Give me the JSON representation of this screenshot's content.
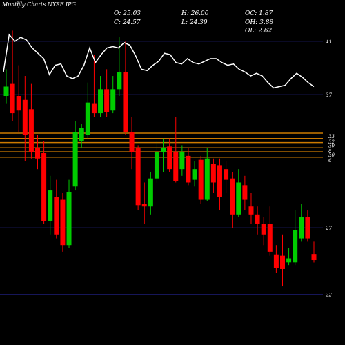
{
  "chart_data": {
    "type": "candlestick",
    "title": "Monthly Charts NYSE IPG",
    "watermark": "Munafa",
    "info": [
      "O: 25.03",
      "H: 26.00",
      "OC: 1.87",
      "C: 24.57",
      "L: 24.39",
      "OH: 3.88",
      "OL: 2.62"
    ],
    "ylim": [
      18.2,
      44.1
    ],
    "yticks": [
      41,
      37,
      27,
      22
    ],
    "grid": true,
    "grid_color": "#1a1a66",
    "up_color": "#00cc00",
    "down_color": "#ff0000",
    "level_color": "#cc7a00",
    "line_color": "#ffffff",
    "levels": [
      {
        "value": 34.1,
        "label": "33"
      },
      {
        "value": 33.7,
        "label": "32"
      },
      {
        "value": 33.4,
        "label": "30"
      },
      {
        "value": 33.0,
        "label": "8"
      },
      {
        "value": 32.7,
        "label": "30"
      },
      {
        "value": 32.3,
        "label": "6"
      }
    ],
    "candles": [
      {
        "o": 36.9,
        "c": 37.6,
        "h": 38.9,
        "l": 36.3
      },
      {
        "o": 37.8,
        "c": 35.6,
        "h": 41.8,
        "l": 35.0
      },
      {
        "o": 36.9,
        "c": 35.8,
        "h": 39.2,
        "l": 34.2
      },
      {
        "o": 36.6,
        "c": 34.0,
        "h": 38.4,
        "l": 32.0
      },
      {
        "o": 35.9,
        "c": 32.7,
        "h": 37.8,
        "l": 32.2
      },
      {
        "o": 33.0,
        "c": 32.2,
        "h": 34.0,
        "l": 31.4
      },
      {
        "o": 32.6,
        "c": 27.5,
        "h": 33.5,
        "l": 27.3
      },
      {
        "o": 27.5,
        "c": 29.8,
        "h": 30.9,
        "l": 26.5
      },
      {
        "o": 29.3,
        "c": 26.5,
        "h": 30.6,
        "l": 26.2
      },
      {
        "o": 29.1,
        "c": 25.7,
        "h": 29.6,
        "l": 25.2
      },
      {
        "o": 25.7,
        "c": 29.7,
        "h": 30.6,
        "l": 25.5
      },
      {
        "o": 30.1,
        "c": 34.2,
        "h": 35.0,
        "l": 29.8
      },
      {
        "o": 33.5,
        "c": 34.5,
        "h": 34.8,
        "l": 33.0
      },
      {
        "o": 34.0,
        "c": 36.4,
        "h": 37.9,
        "l": 33.7
      },
      {
        "o": 36.3,
        "c": 35.6,
        "h": 40.0,
        "l": 35.3
      },
      {
        "o": 35.6,
        "c": 37.4,
        "h": 38.4,
        "l": 35.3
      },
      {
        "o": 37.4,
        "c": 35.7,
        "h": 38.9,
        "l": 35.3
      },
      {
        "o": 35.8,
        "c": 37.4,
        "h": 38.4,
        "l": 35.6
      },
      {
        "o": 37.4,
        "c": 38.7,
        "h": 41.3,
        "l": 36.9
      },
      {
        "o": 38.7,
        "c": 34.2,
        "h": 41.0,
        "l": 34.0
      },
      {
        "o": 34.2,
        "c": 32.7,
        "h": 35.3,
        "l": 31.4
      },
      {
        "o": 33.0,
        "c": 28.7,
        "h": 33.2,
        "l": 28.3
      },
      {
        "o": 28.8,
        "c": 28.6,
        "h": 30.4,
        "l": 27.3
      },
      {
        "o": 28.6,
        "c": 30.7,
        "h": 31.2,
        "l": 28.0
      },
      {
        "o": 30.7,
        "c": 32.7,
        "h": 33.5,
        "l": 30.4
      },
      {
        "o": 32.7,
        "c": 33.0,
        "h": 33.7,
        "l": 31.2
      },
      {
        "o": 33.1,
        "c": 31.4,
        "h": 33.7,
        "l": 31.2
      },
      {
        "o": 32.7,
        "c": 30.5,
        "h": 35.3,
        "l": 30.4
      },
      {
        "o": 31.4,
        "c": 32.7,
        "h": 33.2,
        "l": 30.9
      },
      {
        "o": 32.4,
        "c": 30.4,
        "h": 33.0,
        "l": 30.2
      },
      {
        "o": 30.6,
        "c": 31.4,
        "h": 32.0,
        "l": 30.1
      },
      {
        "o": 32.1,
        "c": 29.1,
        "h": 32.4,
        "l": 28.8
      },
      {
        "o": 29.1,
        "c": 32.2,
        "h": 33.0,
        "l": 29.0
      },
      {
        "o": 31.8,
        "c": 30.4,
        "h": 32.2,
        "l": 29.6
      },
      {
        "o": 31.7,
        "c": 29.3,
        "h": 32.2,
        "l": 28.3
      },
      {
        "o": 31.4,
        "c": 30.6,
        "h": 32.0,
        "l": 29.6
      },
      {
        "o": 30.7,
        "c": 28.0,
        "h": 31.2,
        "l": 27.0
      },
      {
        "o": 28.0,
        "c": 30.4,
        "h": 31.4,
        "l": 27.8
      },
      {
        "o": 30.2,
        "c": 29.1,
        "h": 30.9,
        "l": 28.3
      },
      {
        "o": 28.6,
        "c": 28.0,
        "h": 29.6,
        "l": 27.3
      },
      {
        "o": 28.0,
        "c": 27.3,
        "h": 28.6,
        "l": 26.5
      },
      {
        "o": 27.3,
        "c": 26.5,
        "h": 27.8,
        "l": 25.7
      },
      {
        "o": 27.3,
        "c": 25.2,
        "h": 28.6,
        "l": 24.9
      },
      {
        "o": 25.0,
        "c": 24.0,
        "h": 25.7,
        "l": 23.6
      },
      {
        "o": 24.9,
        "c": 23.9,
        "h": 26.5,
        "l": 22.6
      },
      {
        "o": 24.4,
        "c": 24.7,
        "h": 25.5,
        "l": 24.2
      },
      {
        "o": 24.4,
        "c": 26.8,
        "h": 28.3,
        "l": 24.2
      },
      {
        "o": 26.2,
        "c": 27.8,
        "h": 28.8,
        "l": 26.0
      },
      {
        "o": 27.8,
        "c": 26.2,
        "h": 28.3,
        "l": 26.0
      },
      {
        "o": 25.03,
        "c": 24.57,
        "h": 26.0,
        "l": 24.39
      }
    ],
    "line": [
      38.7,
      41.5,
      41,
      41.3,
      41.1,
      40.5,
      40.1,
      39.7,
      38.5,
      39.2,
      39.3,
      38.4,
      38.2,
      38.4,
      39.2,
      40.5,
      39.4,
      40,
      40.5,
      40.6,
      40.5,
      40.9,
      40.7,
      39.9,
      38.9,
      38.8,
      39.2,
      39.5,
      40.1,
      40,
      39.4,
      39.3,
      39.7,
      39.4,
      39.3,
      39.5,
      39.7,
      39.7,
      39.4,
      39.2,
      39.3,
      38.9,
      38.7,
      38.4,
      38.6,
      38.4,
      37.9,
      37.5,
      37.6,
      37.7,
      38.2,
      38.6,
      38.3,
      37.9,
      37.6
    ]
  }
}
